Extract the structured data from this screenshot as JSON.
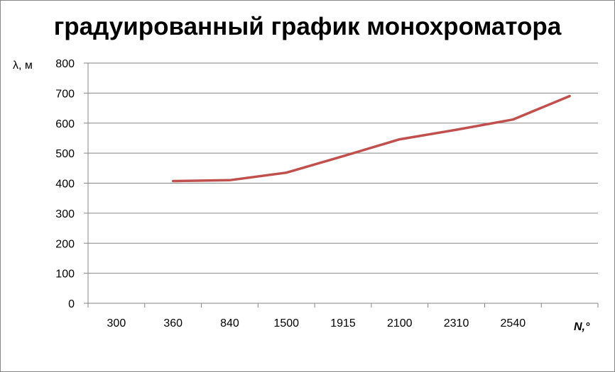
{
  "chart_data": {
    "type": "line",
    "title": "градуированный график монохроматора",
    "ylabel": "λ, м",
    "xlabel": "N,°",
    "categories": [
      "300",
      "360",
      "840",
      "1500",
      "1915",
      "2100",
      "2310",
      "2540"
    ],
    "yticks": [
      "0",
      "100",
      "200",
      "300",
      "400",
      "500",
      "600",
      "700",
      "800"
    ],
    "ylim": [
      0,
      800
    ],
    "grid": true,
    "series": [
      {
        "color": "#c0504d",
        "points": [
          {
            "x": 1.5,
            "y": 407
          },
          {
            "x": 2.5,
            "y": 410
          },
          {
            "x": 3.5,
            "y": 435
          },
          {
            "x": 4.5,
            "y": 490
          },
          {
            "x": 5.5,
            "y": 546
          },
          {
            "x": 6.5,
            "y": 578
          },
          {
            "x": 7.5,
            "y": 612
          },
          {
            "x": 8.5,
            "y": 690
          }
        ]
      }
    ]
  }
}
